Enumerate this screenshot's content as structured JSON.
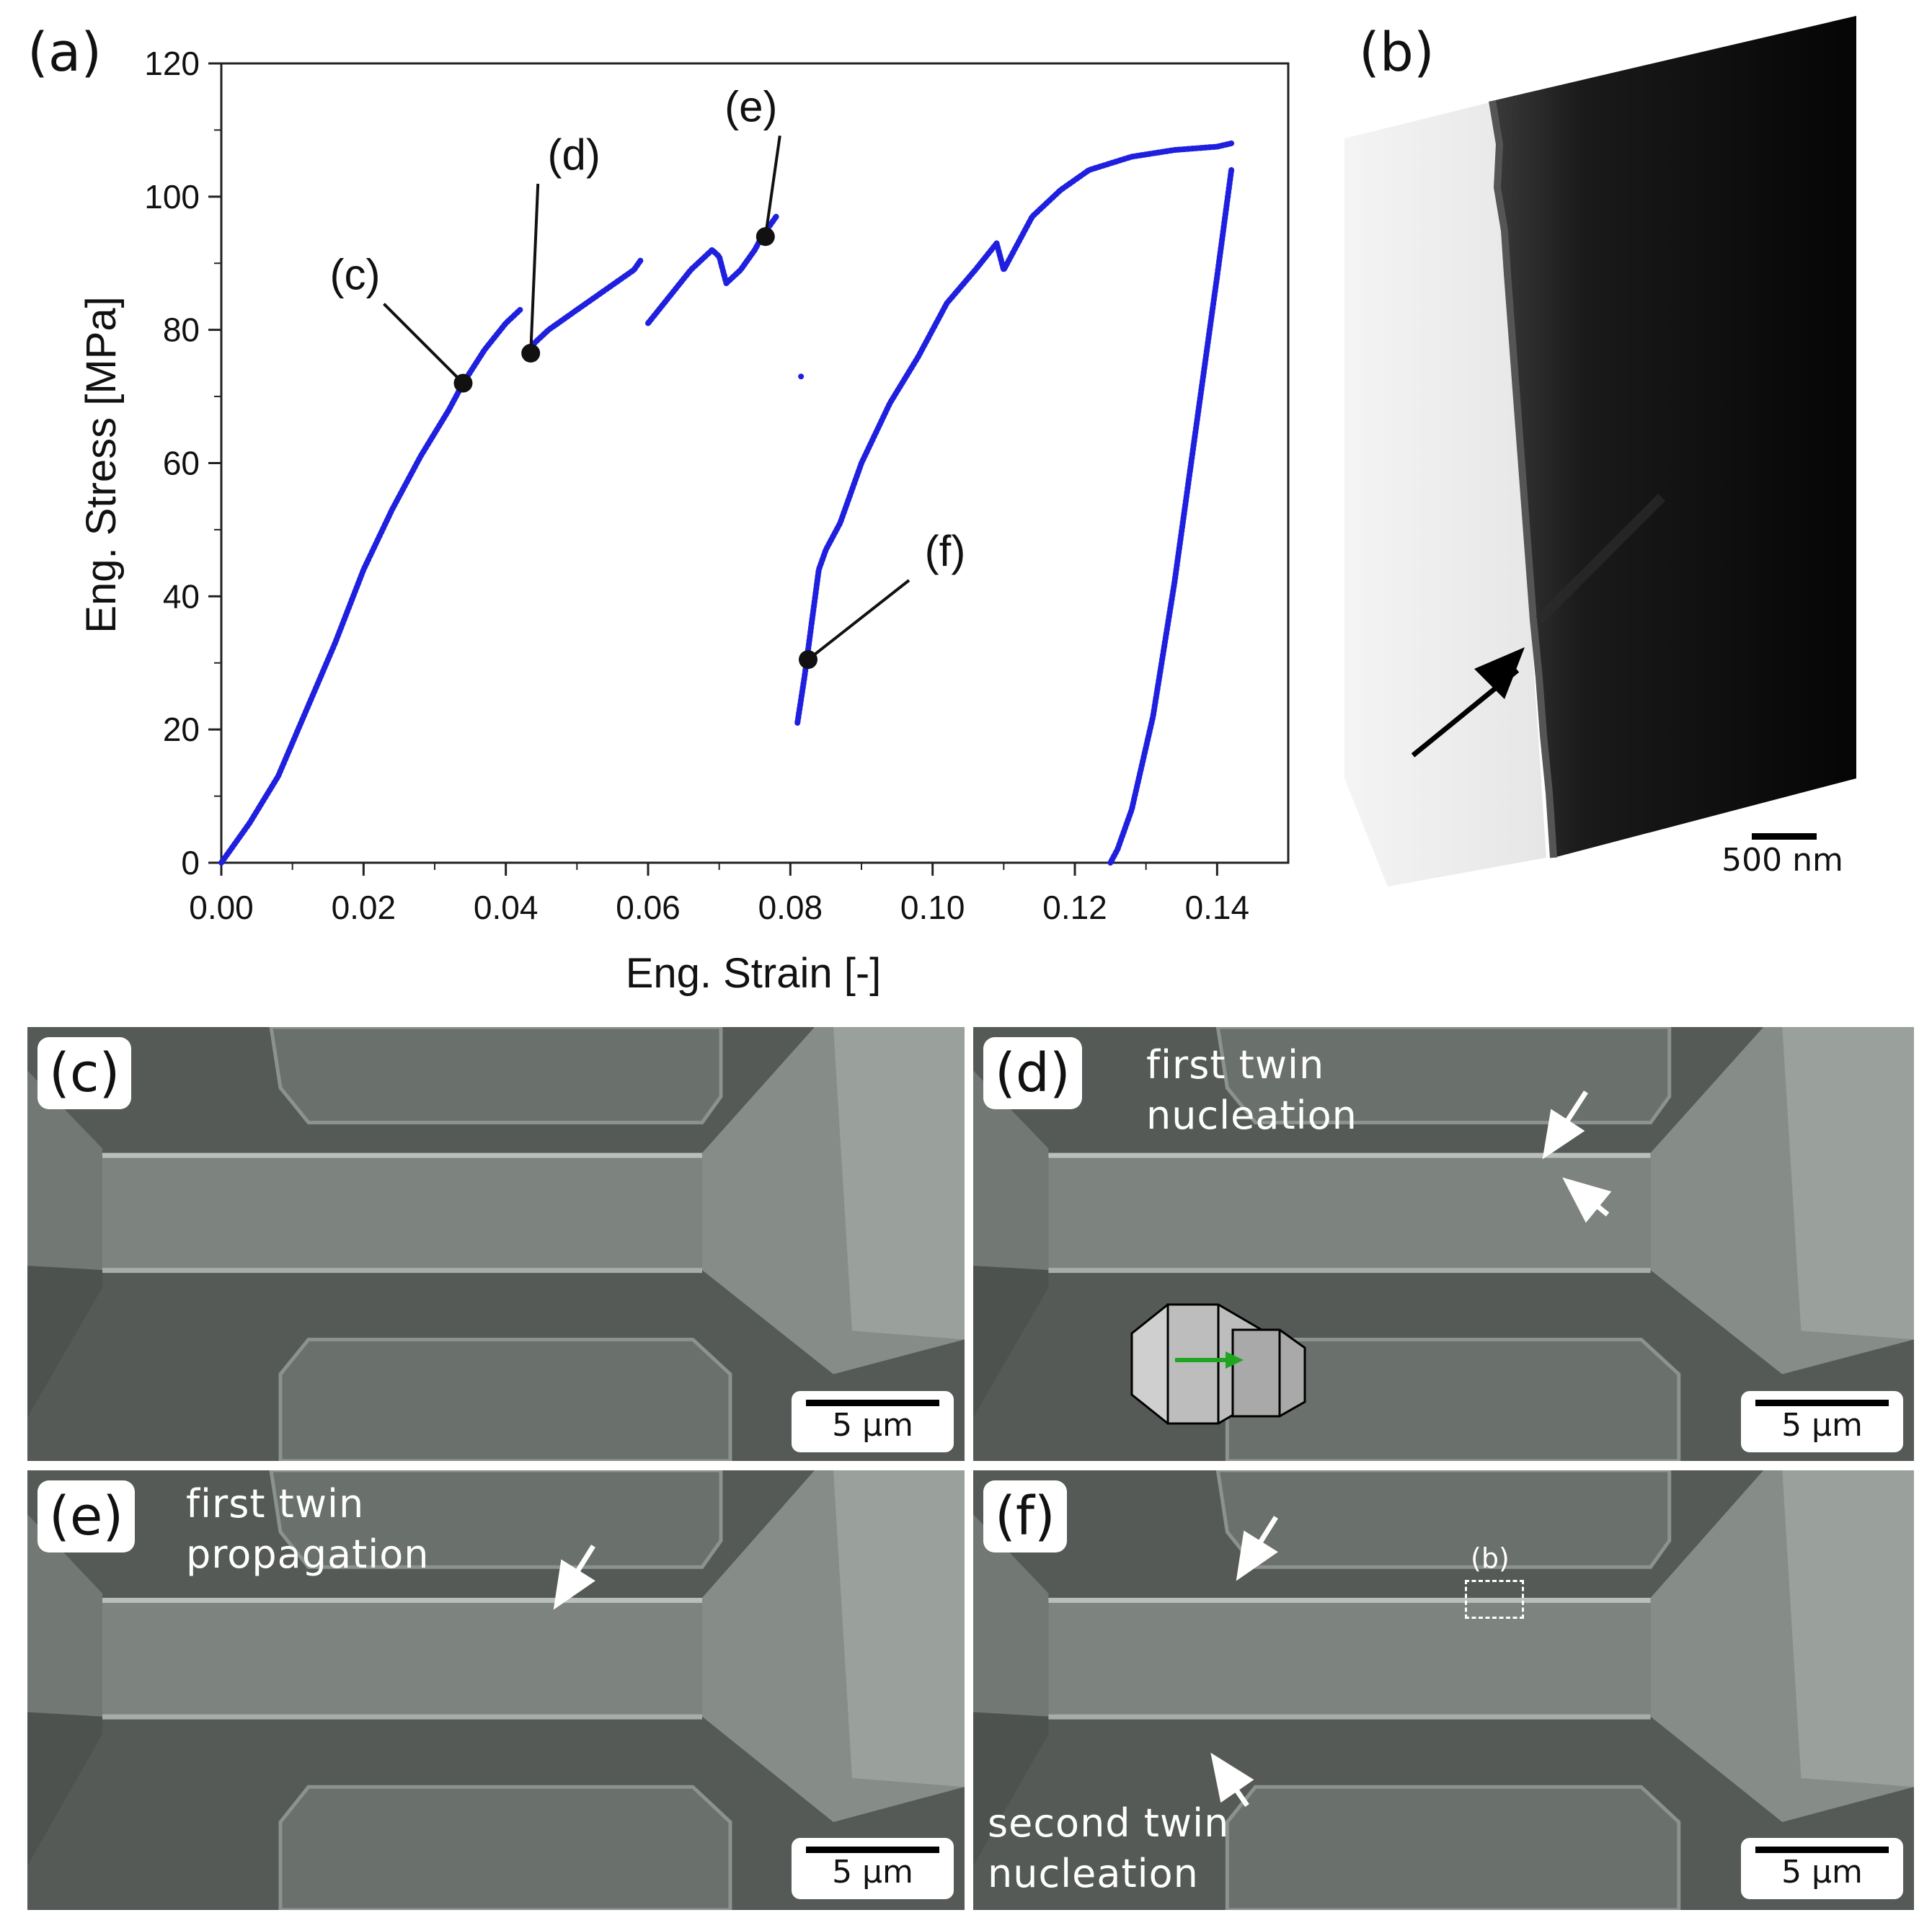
{
  "panel_a": {
    "letter": "(a)",
    "chart_data": {
      "type": "scatter",
      "xlabel": "Eng. Strain [-]",
      "ylabel": "Eng. Stress [MPa]",
      "xlim": [
        0,
        0.15
      ],
      "ylim": [
        0,
        120
      ],
      "xticks": [
        "0.00",
        "0.02",
        "0.04",
        "0.06",
        "0.08",
        "0.10",
        "0.12",
        "0.14"
      ],
      "yticks": [
        "0",
        "20",
        "40",
        "60",
        "80",
        "100",
        "120"
      ],
      "grid": false,
      "series": [
        {
          "color": "#1f1fe0",
          "segments": [
            [
              [
                0.0,
                0
              ],
              [
                0.004,
                6
              ],
              [
                0.008,
                13
              ],
              [
                0.012,
                23
              ],
              [
                0.016,
                33
              ],
              [
                0.02,
                44
              ],
              [
                0.024,
                53
              ],
              [
                0.028,
                61
              ],
              [
                0.032,
                68
              ],
              [
                0.034,
                72
              ],
              [
                0.037,
                77
              ],
              [
                0.04,
                81
              ],
              [
                0.042,
                83
              ]
            ],
            [
              [
                0.043,
                77
              ],
              [
                0.046,
                80
              ],
              [
                0.05,
                83
              ],
              [
                0.054,
                86
              ],
              [
                0.058,
                89
              ],
              [
                0.059,
                90.5
              ]
            ],
            [
              [
                0.06,
                81
              ],
              [
                0.063,
                85
              ],
              [
                0.066,
                89
              ],
              [
                0.069,
                92
              ],
              [
                0.07,
                91
              ],
              [
                0.071,
                87
              ],
              [
                0.073,
                89
              ],
              [
                0.075,
                92
              ],
              [
                0.076,
                94
              ],
              [
                0.078,
                97
              ]
            ],
            [
              [
                0.0815,
                73
              ]
            ],
            [
              [
                0.081,
                21
              ],
              [
                0.082,
                28
              ],
              [
                0.083,
                36
              ],
              [
                0.084,
                44
              ],
              [
                0.085,
                47
              ],
              [
                0.087,
                51
              ],
              [
                0.09,
                60
              ],
              [
                0.094,
                69
              ],
              [
                0.098,
                76
              ],
              [
                0.102,
                84
              ],
              [
                0.106,
                89
              ],
              [
                0.109,
                93
              ],
              [
                0.11,
                89
              ],
              [
                0.114,
                97
              ],
              [
                0.118,
                101
              ],
              [
                0.122,
                104
              ],
              [
                0.128,
                106
              ],
              [
                0.134,
                107
              ],
              [
                0.14,
                107.5
              ],
              [
                0.142,
                108
              ]
            ],
            [
              [
                0.142,
                104
              ],
              [
                0.14,
                88
              ],
              [
                0.137,
                65
              ],
              [
                0.134,
                42
              ],
              [
                0.131,
                22
              ],
              [
                0.128,
                8
              ],
              [
                0.126,
                2
              ],
              [
                0.125,
                0
              ]
            ]
          ]
        }
      ],
      "markers": [
        {
          "label": "(c)",
          "x": 0.034,
          "y": 72
        },
        {
          "label": "(d)",
          "x": 0.0435,
          "y": 76.5
        },
        {
          "label": "(e)",
          "x": 0.0765,
          "y": 94
        },
        {
          "label": "(f)",
          "x": 0.0825,
          "y": 30.5
        }
      ]
    }
  },
  "panel_b": {
    "letter": "(b)",
    "scalebar_label": "500 nm"
  },
  "panel_c": {
    "letter": "(c)",
    "scalebar_label": "5 µm"
  },
  "panel_d": {
    "letter": "(d)",
    "caption_line1": "first twin",
    "caption_line2": "nucleation",
    "scalebar_label": "5 µm"
  },
  "panel_e": {
    "letter": "(e)",
    "caption_line1": "first twin",
    "caption_line2": "propagation",
    "scalebar_label": "5 µm"
  },
  "panel_f": {
    "letter": "(f)",
    "caption_line1": "second twin",
    "caption_line2": "nucleation",
    "box_label": "(b)",
    "scalebar_label": "5 µm"
  }
}
